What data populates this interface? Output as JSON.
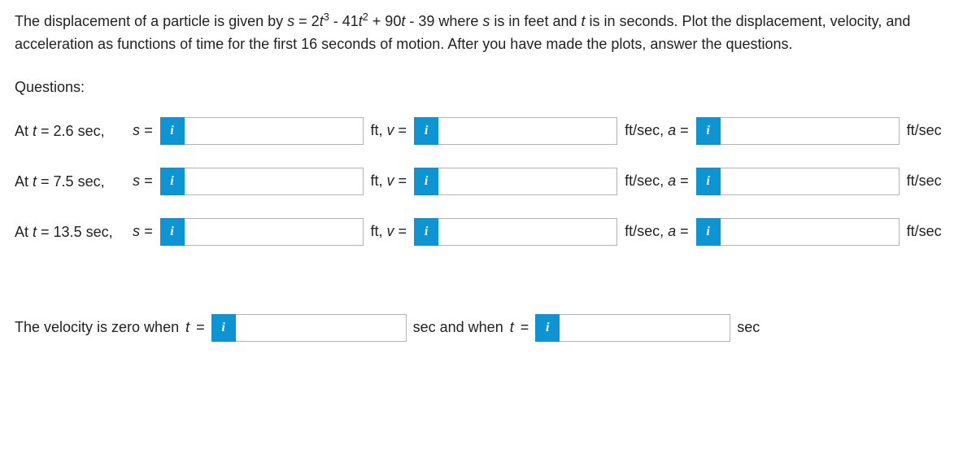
{
  "problem_html": "The displacement of a particle is given by <i>s</i> = 2<i>t</i><sup>3</sup> - 41<i>t</i><sup>2</sup> + 90<i>t</i> - 39 where <i>s</i> is in feet and <i>t</i> is in seconds. Plot the displacement, velocity, and acceleration as functions of time for the first 16 seconds of motion. After you have made the plots, answer the questions.",
  "questions_label": "Questions:",
  "info_glyph": "i",
  "rows": [
    {
      "label_prefix": "At ",
      "t_var": "t",
      "t_eq": " = ",
      "t_value": "2.6 sec,",
      "s_label": "s =",
      "s_value": "",
      "v_label_pre": "ft,",
      "v_label": "v =",
      "v_value": "",
      "a_label_pre": "ft/sec,",
      "a_label": "a =",
      "a_value": "",
      "a_unit": "ft/sec"
    },
    {
      "label_prefix": "At ",
      "t_var": "t",
      "t_eq": " = ",
      "t_value": "7.5 sec,",
      "s_label": "s =",
      "s_value": "",
      "v_label_pre": "ft,",
      "v_label": "v =",
      "v_value": "",
      "a_label_pre": "ft/sec,",
      "a_label": "a =",
      "a_value": "",
      "a_unit": "ft/sec"
    },
    {
      "label_prefix": "At ",
      "t_var": "t",
      "t_eq": " = ",
      "t_value": "13.5 sec,",
      "s_label": "s =",
      "s_value": "",
      "v_label_pre": "ft,",
      "v_label": "v =",
      "v_value": "",
      "a_label_pre": "ft/sec,",
      "a_label": "a =",
      "a_value": "",
      "a_unit": "ft/sec"
    }
  ],
  "zero": {
    "text_pre": "The velocity is zero when ",
    "t_var": "t",
    "eq": " =",
    "v1": "",
    "mid": "sec and when ",
    "t_var2": "t",
    "eq2": " =",
    "v2": "",
    "unit": "sec"
  },
  "colors": {
    "info_bg": "#0d94d2",
    "info_fg": "#ffffff",
    "border": "#b3b3b3"
  }
}
